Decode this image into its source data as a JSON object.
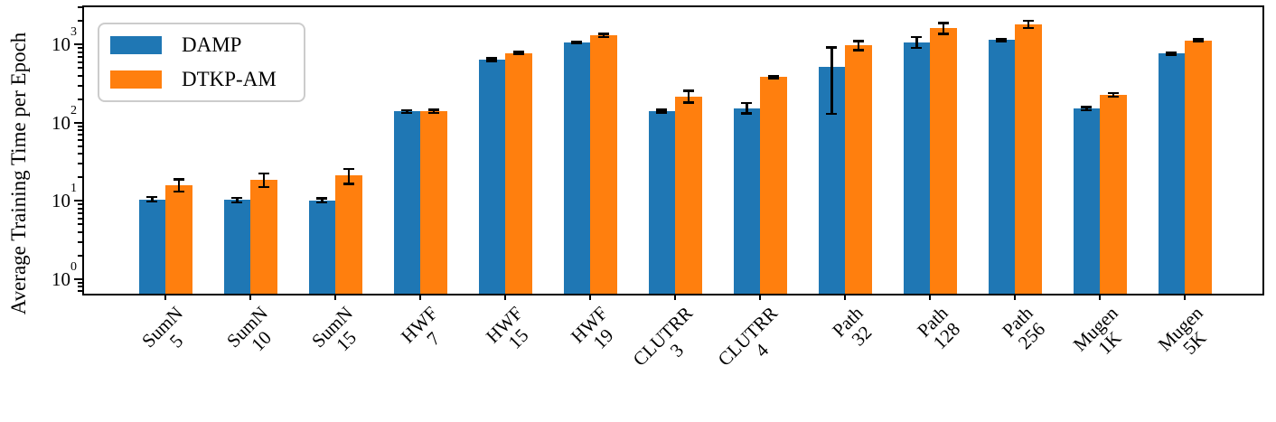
{
  "chart_data": {
    "type": "bar",
    "ylabel": "Average Training Time per Epoch",
    "xlabel": "",
    "yscale": "log",
    "ylim": [
      0.65,
      3000
    ],
    "yticks": [
      "10^0",
      "10^1",
      "10^2",
      "10^3"
    ],
    "grid": false,
    "legend_position": "upper left",
    "categories": [
      [
        "SumN",
        "5"
      ],
      [
        "SumN",
        "10"
      ],
      [
        "SumN",
        "15"
      ],
      [
        "HWF",
        "7"
      ],
      [
        "HWF",
        "15"
      ],
      [
        "HWF",
        "19"
      ],
      [
        "CLUTRR",
        "3"
      ],
      [
        "CLUTRR",
        "4"
      ],
      [
        "Path",
        "32"
      ],
      [
        "Path",
        "128"
      ],
      [
        "Path",
        "256"
      ],
      [
        "Mugen",
        "1K"
      ],
      [
        "Mugen",
        "5K"
      ]
    ],
    "series": [
      {
        "name": "DAMP",
        "color": "#1f77b4",
        "values": [
          10.5,
          10.3,
          10.2,
          139,
          640,
          1065,
          141,
          154,
          525,
          1065,
          1140,
          151,
          765
        ],
        "err_lo": [
          0.7,
          0.7,
          0.6,
          6,
          25,
          30,
          6,
          22,
          395,
          160,
          25,
          7,
          25
        ],
        "err_hi": [
          0.7,
          0.7,
          0.6,
          6,
          25,
          30,
          6,
          26,
          390,
          185,
          25,
          7,
          25
        ]
      },
      {
        "name": "DTKP-AM",
        "color": "#ff7f0e",
        "values": [
          16,
          18.5,
          21,
          140,
          780,
          1310,
          218,
          385,
          975,
          1615,
          1810,
          229,
          1130
        ],
        "err_lo": [
          2.8,
          3.5,
          4.5,
          6,
          30,
          60,
          36,
          15,
          120,
          235,
          180,
          12,
          35
        ],
        "err_hi": [
          3.0,
          4.0,
          4.6,
          6,
          30,
          60,
          40,
          15,
          140,
          280,
          200,
          12,
          35
        ]
      }
    ],
    "error_bar_color": "#000000"
  }
}
